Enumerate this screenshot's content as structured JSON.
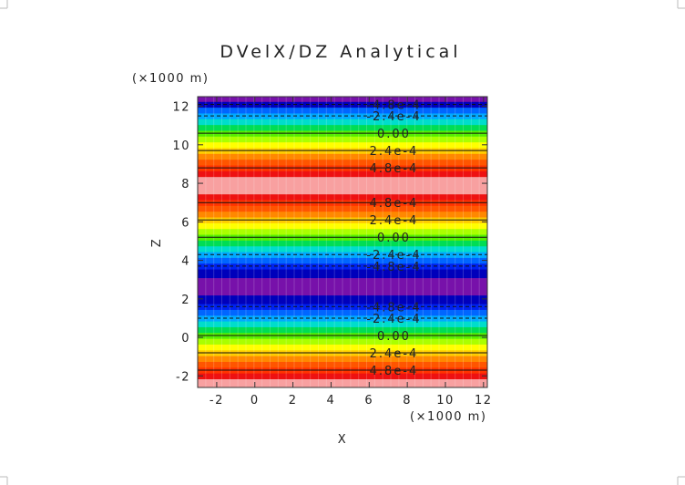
{
  "chart_data": {
    "type": "heatmap",
    "title": "DVelX/DZ Analytical",
    "xlabel": "X",
    "ylabel": "Z",
    "x_unit": "(×1000 m)",
    "y_unit": "(×1000 m)",
    "xlim": [
      -3,
      12.2
    ],
    "ylim": [
      -2.6,
      12.5
    ],
    "x_ticks": [
      -2,
      0,
      2,
      4,
      6,
      8,
      10,
      12
    ],
    "y_ticks": [
      -2,
      0,
      2,
      4,
      6,
      8,
      10,
      12
    ],
    "bands": [
      {
        "z0": -2.6,
        "z1": -2.15,
        "color": "#f8a0a0"
      },
      {
        "z0": -2.15,
        "z1": -1.85,
        "color": "#ee1111"
      },
      {
        "z0": -1.85,
        "z1": -1.55,
        "color": "#ff3300"
      },
      {
        "z0": -1.55,
        "z1": -1.25,
        "color": "#ff5500"
      },
      {
        "z0": -1.25,
        "z1": -0.95,
        "color": "#ff8800"
      },
      {
        "z0": -0.95,
        "z1": -0.65,
        "color": "#ffcc00"
      },
      {
        "z0": -0.65,
        "z1": -0.35,
        "color": "#ffff00"
      },
      {
        "z0": -0.35,
        "z1": -0.05,
        "color": "#aaff00"
      },
      {
        "z0": -0.05,
        "z1": 0.25,
        "color": "#55ee00"
      },
      {
        "z0": 0.25,
        "z1": 0.55,
        "color": "#00dd55"
      },
      {
        "z0": 0.55,
        "z1": 0.85,
        "color": "#00ddcc"
      },
      {
        "z0": 0.85,
        "z1": 1.15,
        "color": "#00aaff"
      },
      {
        "z0": 1.15,
        "z1": 1.45,
        "color": "#0066ff"
      },
      {
        "z0": 1.45,
        "z1": 1.75,
        "color": "#0022ee"
      },
      {
        "z0": 1.75,
        "z1": 2.2,
        "color": "#0000bb"
      },
      {
        "z0": 2.2,
        "z1": 3.1,
        "color": "#7711aa"
      },
      {
        "z0": 3.1,
        "z1": 3.55,
        "color": "#0000bb"
      },
      {
        "z0": 3.55,
        "z1": 3.85,
        "color": "#0022ee"
      },
      {
        "z0": 3.85,
        "z1": 4.15,
        "color": "#0066ff"
      },
      {
        "z0": 4.15,
        "z1": 4.45,
        "color": "#00aaff"
      },
      {
        "z0": 4.45,
        "z1": 4.75,
        "color": "#00ddcc"
      },
      {
        "z0": 4.75,
        "z1": 5.05,
        "color": "#00dd55"
      },
      {
        "z0": 5.05,
        "z1": 5.35,
        "color": "#55ee00"
      },
      {
        "z0": 5.35,
        "z1": 5.65,
        "color": "#aaff00"
      },
      {
        "z0": 5.65,
        "z1": 5.95,
        "color": "#ffff00"
      },
      {
        "z0": 5.95,
        "z1": 6.25,
        "color": "#ffcc00"
      },
      {
        "z0": 6.25,
        "z1": 6.55,
        "color": "#ff8800"
      },
      {
        "z0": 6.55,
        "z1": 6.85,
        "color": "#ff5500"
      },
      {
        "z0": 6.85,
        "z1": 7.15,
        "color": "#ff3300"
      },
      {
        "z0": 7.15,
        "z1": 7.45,
        "color": "#ee1111"
      },
      {
        "z0": 7.45,
        "z1": 8.35,
        "color": "#f8a0a0"
      },
      {
        "z0": 8.35,
        "z1": 8.65,
        "color": "#ee1111"
      },
      {
        "z0": 8.65,
        "z1": 8.95,
        "color": "#ff3300"
      },
      {
        "z0": 8.95,
        "z1": 9.25,
        "color": "#ff5500"
      },
      {
        "z0": 9.25,
        "z1": 9.55,
        "color": "#ff8800"
      },
      {
        "z0": 9.55,
        "z1": 9.85,
        "color": "#ffcc00"
      },
      {
        "z0": 9.85,
        "z1": 10.15,
        "color": "#ffff00"
      },
      {
        "z0": 10.15,
        "z1": 10.45,
        "color": "#aaff00"
      },
      {
        "z0": 10.45,
        "z1": 10.75,
        "color": "#55ee00"
      },
      {
        "z0": 10.75,
        "z1": 11.05,
        "color": "#00dd55"
      },
      {
        "z0": 11.05,
        "z1": 11.35,
        "color": "#00ddcc"
      },
      {
        "z0": 11.35,
        "z1": 11.65,
        "color": "#00aaff"
      },
      {
        "z0": 11.65,
        "z1": 11.95,
        "color": "#0066ff"
      },
      {
        "z0": 11.95,
        "z1": 12.25,
        "color": "#0000bb"
      },
      {
        "z0": 12.25,
        "z1": 12.5,
        "color": "#7711aa"
      }
    ],
    "contours": [
      {
        "z": -1.7,
        "label": "4.8e-4",
        "dashed": false
      },
      {
        "z": -0.8,
        "label": "2.4e-4",
        "dashed": false
      },
      {
        "z": 0.1,
        "label": "0.00",
        "dashed": false
      },
      {
        "z": 1.0,
        "label": "-2.4e-4",
        "dashed": true
      },
      {
        "z": 1.6,
        "label": "-4.8e-4",
        "dashed": true
      },
      {
        "z": 3.7,
        "label": "-4.8e-4",
        "dashed": true
      },
      {
        "z": 4.3,
        "label": "-2.4e-4",
        "dashed": true
      },
      {
        "z": 5.2,
        "label": "0.00",
        "dashed": false
      },
      {
        "z": 6.1,
        "label": "2.4e-4",
        "dashed": false
      },
      {
        "z": 7.0,
        "label": "4.8e-4",
        "dashed": false
      },
      {
        "z": 8.8,
        "label": "4.8e-4",
        "dashed": false
      },
      {
        "z": 9.7,
        "label": "2.4e-4",
        "dashed": false
      },
      {
        "z": 10.6,
        "label": "0.00",
        "dashed": false
      },
      {
        "z": 11.5,
        "label": "-2.4e-4",
        "dashed": true
      },
      {
        "z": 12.1,
        "label": "-4.8e-4",
        "dashed": true
      }
    ],
    "contour_label_x": 7.3
  }
}
